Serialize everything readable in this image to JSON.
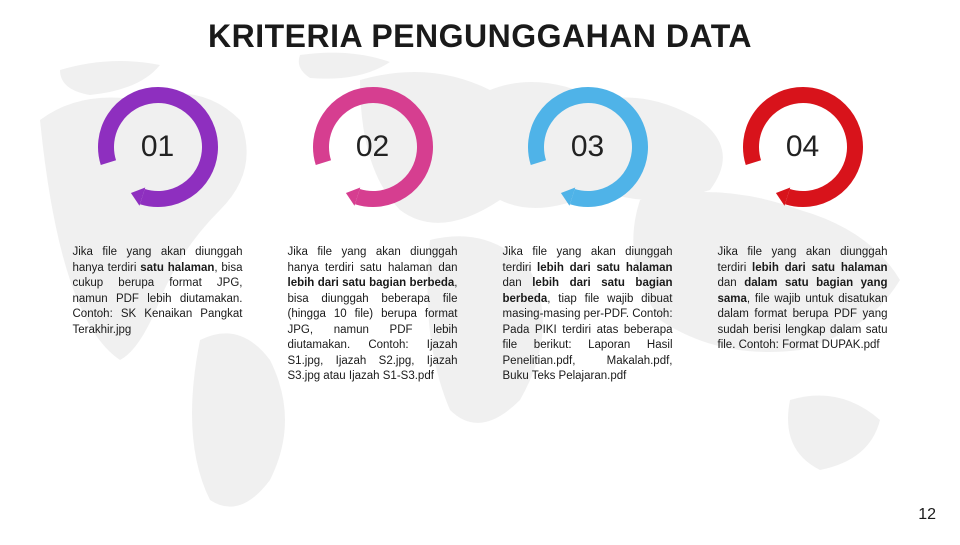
{
  "title": "KRITERIA PENGUNGGAHAN DATA",
  "page_number": "12",
  "background_color": "#ffffff",
  "map_color": "#d6d6d6",
  "ring": {
    "outer_radius": 60,
    "stroke_width": 16,
    "gap_deg": 55,
    "number_fontsize": 30,
    "number_color": "#222222"
  },
  "title_style": {
    "fontsize": 32,
    "weight": 700,
    "color": "#1a1a1a"
  },
  "desc_style": {
    "fontsize": 11.5,
    "lineheight": 1.35,
    "color": "#1a1a1a",
    "align": "justify"
  },
  "columns": [
    {
      "num": "01",
      "arrow_color": "#8e2fbf",
      "ring_color": "#8e2fbf",
      "desc_html": "Jika file yang akan diunggah hanya terdiri <b>satu halaman</b>, bisa cukup berupa format JPG, namun PDF lebih diutamakan. Contoh: SK Kenaikan Pangkat Terakhir.jpg"
    },
    {
      "num": "02",
      "arrow_color": "#d63e90",
      "ring_color": "#d63e90",
      "desc_html": "Jika file yang akan diunggah hanya terdiri satu halaman dan <b>lebih dari satu bagian berbeda</b>, bisa diunggah beberapa file (hingga 10 file) berupa format JPG, namun PDF lebih diutamakan. Contoh: Ijazah S1.jpg, Ijazah S2.jpg, Ijazah S3.jpg atau Ijazah S1-S3.pdf"
    },
    {
      "num": "03",
      "arrow_color": "#4fb3e8",
      "ring_color": "#4fb3e8",
      "desc_html": "Jika file yang akan diunggah terdiri <b>lebih dari satu halaman</b> dan <b>lebih dari satu bagian berbeda</b>, tiap file wajib dibuat masing-masing per-PDF. Contoh: Pada PIKI terdiri atas beberapa file berikut: Laporan Hasil Penelitian.pdf, Makalah.pdf, Buku Teks Pelajaran.pdf"
    },
    {
      "num": "04",
      "arrow_color": "#d8131b",
      "ring_color": "#d8131b",
      "desc_html": "Jika file yang akan diunggah terdiri <b>lebih dari satu halaman</b> dan <b>dalam satu bagian yang sama</b>, file wajib untuk disatukan dalam format berupa PDF yang sudah berisi lengkap dalam satu file. Contoh: Format DUPAK.pdf"
    }
  ]
}
